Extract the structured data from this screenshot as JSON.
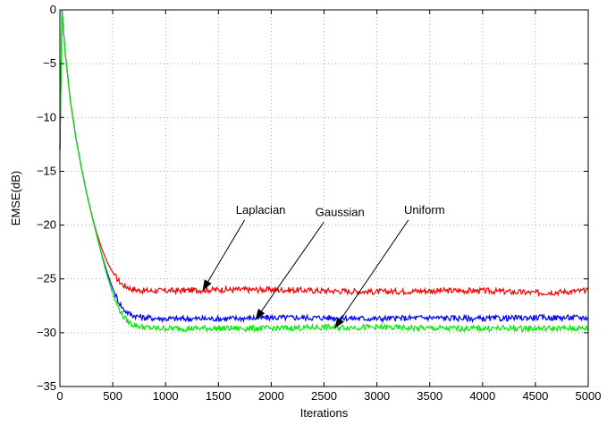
{
  "chart_data": {
    "type": "line",
    "title": "",
    "xlabel": "Iterations",
    "ylabel": "EMSE(dB)",
    "xlim": [
      0,
      5000
    ],
    "ylim": [
      -35,
      0
    ],
    "xticks": [
      0,
      500,
      1000,
      1500,
      2000,
      2500,
      3000,
      3500,
      4000,
      4500,
      5000
    ],
    "yticks": [
      0,
      -5,
      -10,
      -15,
      -20,
      -25,
      -30,
      -35
    ],
    "grid": true,
    "legend": "none",
    "series": [
      {
        "name": "Laplacian",
        "color": "#ff0000",
        "x": [
          0,
          20,
          50,
          100,
          150,
          200,
          250,
          300,
          350,
          400,
          450,
          500,
          550,
          600,
          700,
          800,
          1000,
          1500,
          2000,
          2500,
          3000,
          3500,
          4000,
          4500,
          5000
        ],
        "y": [
          -13,
          0,
          -4,
          -8.5,
          -11.8,
          -14.5,
          -16.9,
          -19,
          -20.8,
          -22.3,
          -23.5,
          -24.4,
          -25.1,
          -25.6,
          -26,
          -26.1,
          -26.1,
          -26,
          -26,
          -26.1,
          -26.2,
          -26.1,
          -26.1,
          -26.3,
          -26.1
        ]
      },
      {
        "name": "Gaussian",
        "color": "#0000ff",
        "x": [
          0,
          20,
          50,
          100,
          150,
          200,
          250,
          300,
          350,
          400,
          450,
          500,
          550,
          600,
          650,
          700,
          800,
          1000,
          1500,
          2000,
          2500,
          3000,
          3500,
          4000,
          4500,
          5000
        ],
        "y": [
          -13,
          0,
          -4,
          -8.5,
          -11.8,
          -14.5,
          -16.9,
          -19,
          -21,
          -22.9,
          -24.5,
          -25.9,
          -27,
          -27.8,
          -28.2,
          -28.4,
          -28.6,
          -28.7,
          -28.7,
          -28.6,
          -28.6,
          -28.7,
          -28.6,
          -28.7,
          -28.6,
          -28.6
        ]
      },
      {
        "name": "Uniform",
        "color": "#00ee00",
        "x": [
          0,
          20,
          50,
          100,
          150,
          200,
          250,
          300,
          350,
          400,
          450,
          500,
          550,
          600,
          650,
          700,
          800,
          900,
          1000,
          1500,
          2000,
          2500,
          3000,
          3500,
          4000,
          4500,
          5000
        ],
        "y": [
          -13,
          0,
          -4,
          -8.5,
          -11.8,
          -14.5,
          -16.9,
          -19,
          -21,
          -23,
          -24.8,
          -26.4,
          -27.6,
          -28.5,
          -29,
          -29.3,
          -29.5,
          -29.6,
          -29.6,
          -29.6,
          -29.6,
          -29.5,
          -29.5,
          -29.6,
          -29.6,
          -29.6,
          -29.6
        ]
      }
    ],
    "annotations": [
      {
        "text": "Laplacian",
        "label_x": 1900,
        "label_y": -19.2,
        "arrow_x": 1350,
        "arrow_y": -26.1
      },
      {
        "text": "Gaussian",
        "label_x": 2650,
        "label_y": -19.4,
        "arrow_x": 1850,
        "arrow_y": -28.8
      },
      {
        "text": "Uniform",
        "label_x": 3450,
        "label_y": -19.2,
        "arrow_x": 2600,
        "arrow_y": -29.6
      }
    ]
  }
}
